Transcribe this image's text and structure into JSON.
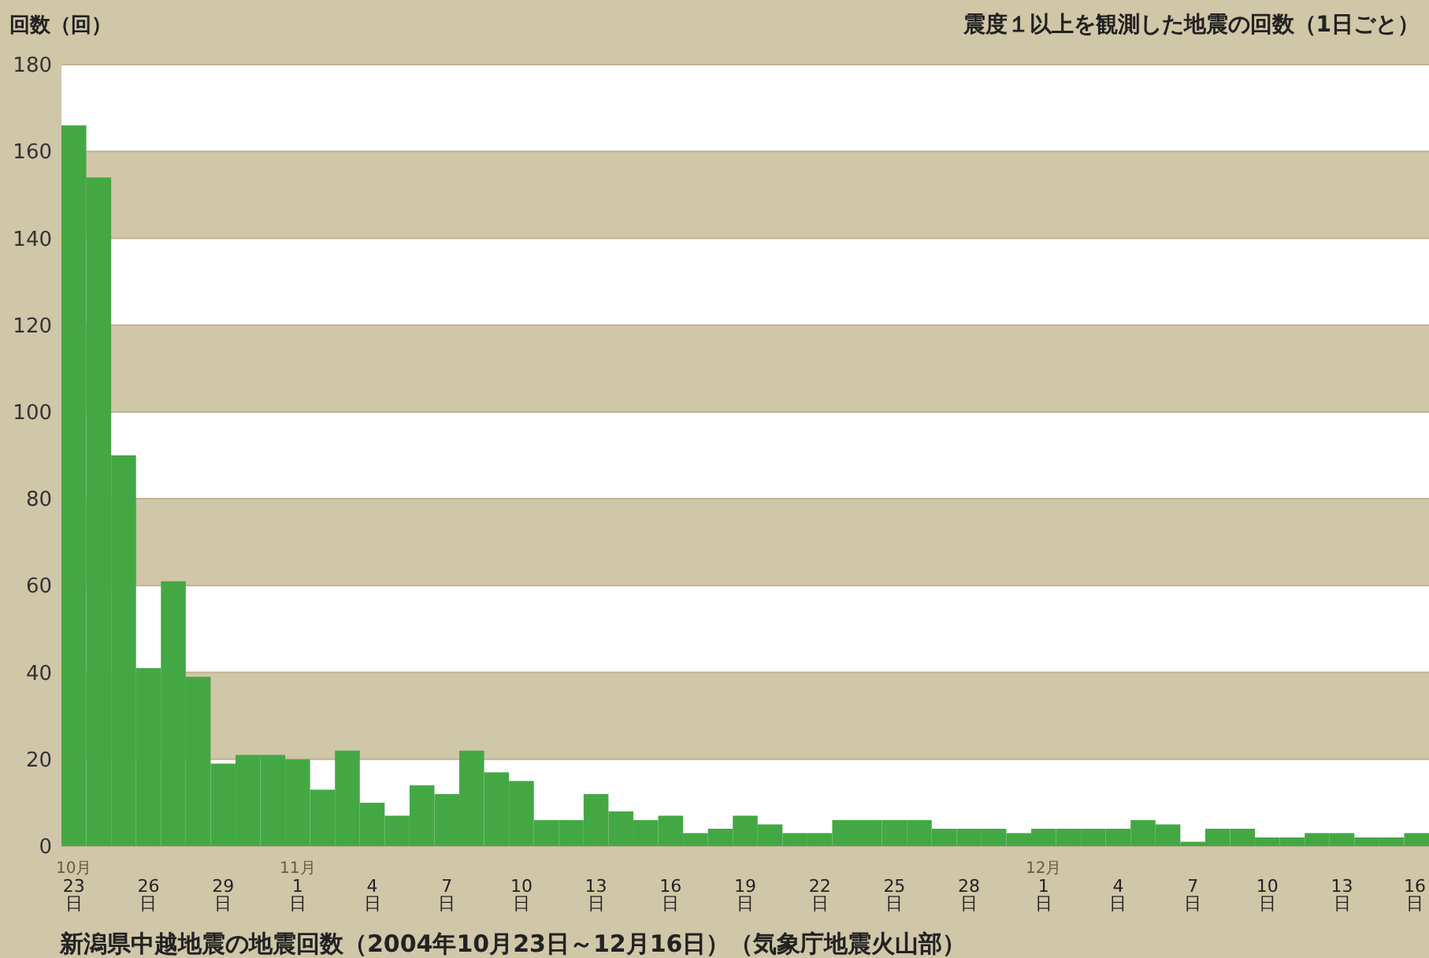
{
  "chart_data": {
    "type": "bar",
    "title": "震度１以上を観測した地震の回数（1日ごと）",
    "ylabel": "回数（回）",
    "annotations": [
      "新潟県中越地震の地震回数（2004年10月23日～12月16日）（気象庁地震火山部）"
    ],
    "categories": [
      "10月 23 日",
      null,
      null,
      "26 日",
      null,
      null,
      "29 日",
      null,
      null,
      "11月 1 日",
      null,
      null,
      "4 日",
      null,
      null,
      "7 日",
      null,
      null,
      "10 日",
      null,
      null,
      "13 日",
      null,
      null,
      "16 日",
      null,
      null,
      "19 日",
      null,
      null,
      "22 日",
      null,
      null,
      "25 日",
      null,
      null,
      "28 日",
      null,
      null,
      "12月 1 日",
      null,
      null,
      "4 日",
      null,
      null,
      "7 日",
      null,
      null,
      "10 日",
      null,
      null,
      "13 日",
      null,
      null,
      "16 日"
    ],
    "values": [
      166,
      154,
      90,
      41,
      61,
      39,
      19,
      21,
      21,
      20,
      13,
      22,
      10,
      7,
      14,
      12,
      22,
      17,
      15,
      6,
      6,
      12,
      8,
      6,
      7,
      3,
      4,
      7,
      5,
      3,
      3,
      6,
      6,
      6,
      6,
      4,
      4,
      4,
      3,
      4,
      4,
      4,
      4,
      6,
      5,
      1,
      4,
      4,
      2,
      2,
      3,
      3,
      2,
      2,
      3
    ],
    "color": "#43a843",
    "ylim": [
      0,
      180
    ],
    "yticks": [
      0,
      20,
      40,
      60,
      80,
      100,
      120,
      140,
      160,
      180
    ],
    "grid": true
  }
}
